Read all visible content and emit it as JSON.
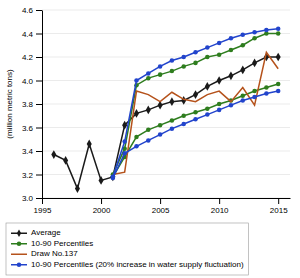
{
  "chart_data": {
    "type": "line",
    "ylabel": "(million metric tons)",
    "series": [
      {
        "name": "Average",
        "color": "#1a1a1a",
        "marker": "diamond",
        "x": [
          1996,
          1997,
          1998,
          1999,
          2000,
          2001,
          2002,
          2003,
          2004,
          2005,
          2006,
          2007,
          2008,
          2009,
          2010,
          2011,
          2012,
          2013,
          2014,
          2015
        ],
        "values": [
          3.37,
          3.32,
          3.08,
          3.46,
          3.15,
          3.18,
          3.62,
          3.72,
          3.75,
          3.79,
          3.82,
          3.83,
          3.88,
          3.95,
          4.0,
          4.04,
          4.09,
          4.15,
          4.2,
          4.2
        ]
      },
      {
        "name": "10-90 Percentiles",
        "color": "#2e7d1e",
        "marker": "circle",
        "x": [
          2001,
          2002,
          2003,
          2004,
          2005,
          2006,
          2007,
          2008,
          2009,
          2010,
          2011,
          2012,
          2013,
          2014,
          2015
        ],
        "values": [
          3.2,
          3.42,
          3.96,
          4.02,
          4.05,
          4.08,
          4.12,
          4.15,
          4.2,
          4.22,
          4.26,
          4.3,
          4.36,
          4.4,
          4.4
        ]
      },
      {
        "color": "#2e7d1e",
        "marker": "circle",
        "x": [
          2001,
          2002,
          2003,
          2004,
          2005,
          2006,
          2007,
          2008,
          2009,
          2010,
          2011,
          2012,
          2013,
          2014,
          2015
        ],
        "values": [
          3.18,
          3.35,
          3.52,
          3.58,
          3.62,
          3.66,
          3.7,
          3.73,
          3.76,
          3.8,
          3.83,
          3.87,
          3.91,
          3.94,
          3.97
        ]
      },
      {
        "name": "Draw No.137",
        "color": "#b5521b",
        "x": [
          2001,
          2002,
          2003,
          2004,
          2005,
          2006,
          2007,
          2008,
          2009,
          2010,
          2011,
          2012,
          2013,
          2014,
          2015
        ],
        "values": [
          3.2,
          3.22,
          3.91,
          3.88,
          3.82,
          3.9,
          3.84,
          3.82,
          3.88,
          3.91,
          3.82,
          3.94,
          3.79,
          4.24,
          4.1
        ]
      },
      {
        "name": "10-90 Percentiles (20% increase in water supply fluctuation)",
        "color": "#2244cc",
        "marker": "circle",
        "x": [
          2001,
          2002,
          2003,
          2004,
          2005,
          2006,
          2007,
          2008,
          2009,
          2010,
          2011,
          2012,
          2013,
          2014,
          2015
        ],
        "values": [
          3.18,
          3.48,
          4.0,
          4.06,
          4.12,
          4.17,
          4.2,
          4.24,
          4.28,
          4.32,
          4.36,
          4.39,
          4.41,
          4.43,
          4.44
        ]
      },
      {
        "color": "#2244cc",
        "marker": "circle",
        "x": [
          2001,
          2002,
          2003,
          2004,
          2005,
          2006,
          2007,
          2008,
          2009,
          2010,
          2011,
          2012,
          2013,
          2014,
          2015
        ],
        "values": [
          3.17,
          3.38,
          3.44,
          3.49,
          3.54,
          3.59,
          3.63,
          3.67,
          3.71,
          3.75,
          3.79,
          3.83,
          3.86,
          3.89,
          3.91
        ]
      }
    ],
    "xlim": [
      1995,
      2016
    ],
    "xticks": [
      1995,
      2000,
      2005,
      2010,
      2015
    ],
    "ylim": [
      3.0,
      4.6
    ],
    "yticks": [
      {
        "value": 3.0,
        "label": "3.0"
      },
      3.2,
      3.4,
      3.6,
      3.8,
      {
        "value": 4.0,
        "label": "4.0"
      },
      4.2,
      4.4,
      4.6
    ],
    "grid": "y",
    "legend": "bottom"
  }
}
